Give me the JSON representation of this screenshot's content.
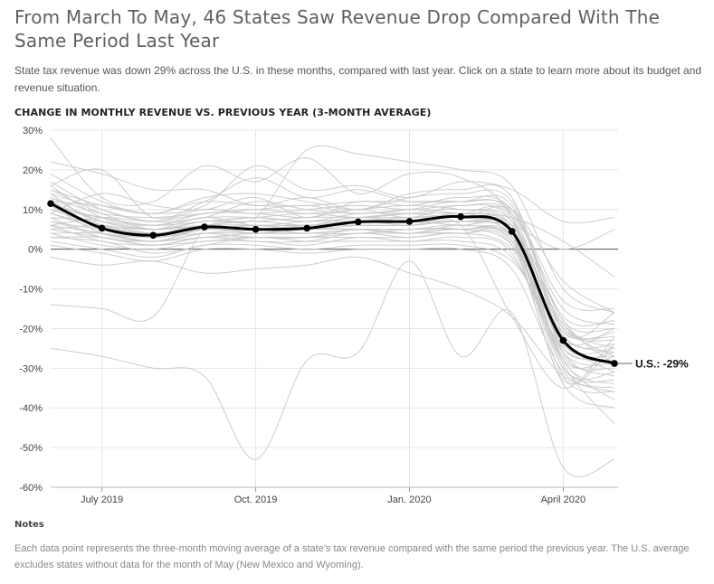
{
  "header": {
    "title": "From March To May, 46 States Saw Revenue Drop Compared With The Same Period Last Year",
    "subtitle": "State tax revenue was down 29% across the U.S. in these months, compared with last year. Click on a state to learn more about its budget and revenue situation."
  },
  "notes": {
    "title": "Notes",
    "text": "Each data point represents the three-month moving average of a state's tax revenue compared with the same period the previous year. The U.S. average excludes states without data for the month of May (New Mexico and Wyoming)."
  },
  "chart_data": {
    "type": "line",
    "title": "CHANGE IN MONTHLY REVENUE VS. PREVIOUS YEAR (3-MONTH AVERAGE)",
    "ylim": [
      -60,
      30
    ],
    "y_ticks": [
      30,
      20,
      10,
      0,
      -10,
      -20,
      -30,
      -40,
      -50,
      -60
    ],
    "y_tick_labels": [
      "30%",
      "20%",
      "10%",
      "0%",
      "-10%",
      "-20%",
      "-30%",
      "-40%",
      "-50%",
      "-60%"
    ],
    "x": [
      "2019-06",
      "2019-07",
      "2019-08",
      "2019-09",
      "2019-10",
      "2019-11",
      "2019-12",
      "2020-01",
      "2020-02",
      "2020-03",
      "2020-04",
      "2020-05"
    ],
    "x_tick_labels": [
      {
        "at": "2019-07",
        "label": "July 2019"
      },
      {
        "at": "2019-10",
        "label": "Oct. 2019"
      },
      {
        "at": "2020-01",
        "label": "Jan. 2020"
      },
      {
        "at": "2020-04",
        "label": "April 2020"
      }
    ],
    "grid": true,
    "us_average": {
      "label": "U.S.: -29%",
      "values": [
        11.5,
        5.3,
        3.5,
        5.6,
        5.0,
        5.3,
        6.9,
        7.0,
        8.2,
        4.5,
        -23.0,
        -28.8
      ]
    },
    "states": [
      {
        "values": [
          28,
          13,
          12,
          21,
          17,
          23,
          14,
          19,
          18,
          8,
          -28,
          -34
        ]
      },
      {
        "values": [
          22,
          19,
          15,
          15,
          11,
          13,
          10,
          14,
          15,
          13,
          -21,
          -16
        ]
      },
      {
        "values": [
          19,
          12,
          9,
          13,
          14,
          12,
          10,
          13,
          14,
          12,
          -18,
          -20
        ]
      },
      {
        "values": [
          17,
          10,
          7,
          8,
          12,
          10,
          9,
          10,
          12,
          9,
          -22,
          -24
        ]
      },
      {
        "values": [
          16,
          8,
          6,
          9,
          9,
          8,
          10,
          8,
          11,
          7,
          -25,
          -26
        ]
      },
      {
        "values": [
          15,
          9,
          5,
          7,
          8,
          9,
          8,
          9,
          10,
          6,
          -20,
          -22
        ]
      },
      {
        "values": [
          14,
          6,
          4,
          6,
          7,
          6,
          8,
          7,
          9,
          5,
          -27,
          -30
        ]
      },
      {
        "values": [
          13,
          7,
          5,
          8,
          6,
          7,
          7,
          8,
          8,
          4,
          -24,
          -27
        ]
      },
      {
        "values": [
          12,
          5,
          3,
          5,
          6,
          5,
          6,
          6,
          7,
          3,
          -30,
          -33
        ]
      },
      {
        "values": [
          11,
          4,
          2,
          4,
          5,
          4,
          5,
          5,
          6,
          2,
          -26,
          -29
        ]
      },
      {
        "values": [
          10,
          6,
          4,
          6,
          4,
          6,
          6,
          6,
          7,
          5,
          -19,
          -25
        ]
      },
      {
        "values": [
          9,
          5,
          3,
          5,
          5,
          5,
          5,
          4,
          6,
          3,
          -32,
          -36
        ]
      },
      {
        "values": [
          8,
          3,
          2,
          3,
          4,
          4,
          4,
          5,
          5,
          1,
          -23,
          -31
        ]
      },
      {
        "values": [
          7,
          4,
          3,
          4,
          3,
          3,
          5,
          4,
          5,
          2,
          -28,
          -38
        ]
      },
      {
        "values": [
          6,
          2,
          1,
          2,
          3,
          3,
          3,
          3,
          4,
          0,
          -22,
          -26
        ]
      },
      {
        "values": [
          5,
          3,
          1,
          3,
          2,
          2,
          4,
          3,
          4,
          1,
          -34,
          -40
        ]
      },
      {
        "values": [
          4,
          1,
          0,
          2,
          2,
          1,
          3,
          2,
          3,
          -1,
          -29,
          -44
        ]
      },
      {
        "values": [
          3,
          2,
          -1,
          1,
          3,
          2,
          2,
          2,
          2,
          -2,
          -25,
          -28
        ]
      },
      {
        "values": [
          2,
          0,
          -2,
          1,
          1,
          0,
          1,
          1,
          1,
          -3,
          -21,
          -23
        ]
      },
      {
        "values": [
          1,
          -1,
          -3,
          0,
          0,
          -1,
          0,
          0,
          0,
          -5,
          -31,
          -35
        ]
      },
      {
        "values": [
          9,
          14,
          11,
          10,
          13,
          8,
          12,
          11,
          13,
          10,
          -17,
          -18
        ]
      },
      {
        "values": [
          16,
          20,
          8,
          12,
          18,
          13,
          15,
          12,
          12,
          11,
          -20,
          -21
        ]
      },
      {
        "values": [
          -14,
          -15,
          -17,
          5,
          8,
          25,
          24,
          22,
          20,
          16,
          -10,
          -16
        ]
      },
      {
        "values": [
          -25,
          -27,
          -30,
          -32,
          -53,
          -28,
          -26,
          -3,
          -27,
          -16,
          -55,
          -53
        ]
      },
      {
        "values": [
          -2,
          -4,
          -3,
          -6,
          -5,
          -4,
          -2,
          -6,
          -10,
          -17,
          -32,
          -36
        ]
      },
      {
        "values": [
          12,
          11,
          9,
          11,
          21,
          15,
          16,
          13,
          17,
          15,
          7,
          8
        ]
      },
      {
        "values": [
          6,
          8,
          7,
          9,
          10,
          11,
          9,
          10,
          9,
          8,
          2,
          -7
        ]
      },
      {
        "values": [
          10,
          8,
          6,
          7,
          8,
          7,
          8,
          9,
          8,
          10,
          -8,
          -16
        ]
      },
      {
        "values": [
          8,
          7,
          5,
          6,
          7,
          6,
          7,
          7,
          7,
          6,
          0,
          5
        ]
      },
      {
        "values": [
          5,
          6,
          4,
          5,
          5,
          6,
          6,
          6,
          6,
          -17,
          -35,
          -22
        ]
      },
      {
        "values": [
          14,
          10,
          7,
          10,
          9,
          10,
          11,
          10,
          11,
          9,
          -15,
          -19
        ]
      },
      {
        "values": [
          13,
          9,
          8,
          9,
          10,
          9,
          10,
          11,
          10,
          7,
          -18,
          -29
        ]
      },
      {
        "values": [
          11,
          8,
          6,
          8,
          8,
          7,
          9,
          9,
          9,
          8,
          -26,
          -32
        ]
      },
      {
        "values": [
          7,
          5,
          4,
          5,
          6,
          6,
          7,
          7,
          6,
          5,
          -24,
          -25
        ]
      },
      {
        "values": [
          4,
          4,
          2,
          4,
          4,
          4,
          5,
          5,
          5,
          3,
          -28,
          -27
        ]
      },
      {
        "values": [
          3,
          3,
          1,
          3,
          3,
          3,
          4,
          4,
          4,
          2,
          -33,
          -24
        ]
      },
      {
        "values": [
          15,
          11,
          9,
          12,
          11,
          11,
          12,
          12,
          12,
          10,
          -13,
          -15
        ]
      },
      {
        "values": [
          12,
          7,
          5,
          7,
          7,
          8,
          8,
          8,
          8,
          6,
          -19,
          -27
        ]
      },
      {
        "values": [
          9,
          6,
          5,
          6,
          6,
          5,
          7,
          6,
          7,
          4,
          -30,
          -31
        ]
      },
      {
        "values": [
          6,
          4,
          2,
          5,
          4,
          5,
          5,
          4,
          5,
          3,
          -23,
          -20
        ]
      }
    ]
  }
}
